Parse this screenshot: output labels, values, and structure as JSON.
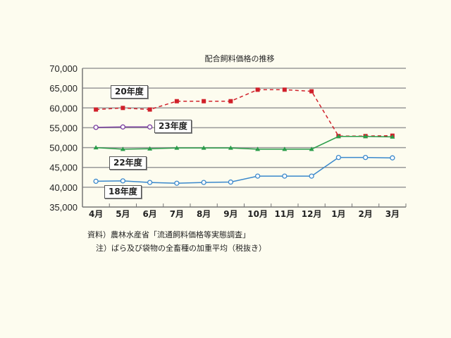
{
  "chart_data": {
    "type": "line",
    "title": "配合飼料価格の推移",
    "xlabel": "",
    "ylabel": "",
    "categories": [
      "4月",
      "5月",
      "6月",
      "7月",
      "8月",
      "9月",
      "10月",
      "11月",
      "12月",
      "1月",
      "2月",
      "3月"
    ],
    "ylim": [
      35000,
      70000
    ],
    "yticks": [
      "70,000",
      "65,000",
      "60,000",
      "55,000",
      "50,000",
      "45,000",
      "40,000",
      "35,000"
    ],
    "grid": true,
    "series": [
      {
        "name": "20年度",
        "color": "#d0202a",
        "style": "dashed",
        "marker": "square",
        "values": [
          59600,
          60000,
          59600,
          61700,
          61700,
          61700,
          64600,
          64600,
          64200,
          52900,
          52900,
          53000
        ]
      },
      {
        "name": "23年度",
        "color": "#7a3fa0",
        "style": "solid",
        "marker": "open-circle",
        "values": [
          55100,
          55200,
          55200,
          null,
          null,
          null,
          null,
          null,
          null,
          null,
          null,
          null
        ]
      },
      {
        "name": "22年度",
        "color": "#2a9d4a",
        "style": "solid",
        "marker": "triangle",
        "values": [
          50000,
          49600,
          49700,
          49900,
          49900,
          49900,
          49600,
          49600,
          49600,
          52800,
          52800,
          52700
        ]
      },
      {
        "name": "18年度",
        "color": "#3a88cc",
        "style": "solid",
        "marker": "open-circle",
        "values": [
          41500,
          41600,
          41200,
          41000,
          41200,
          41300,
          42800,
          42800,
          42800,
          47500,
          47500,
          47400
        ]
      }
    ],
    "annotations": [
      "20年度",
      "23年度",
      "22年度",
      "18年度"
    ]
  },
  "labels": {
    "s20": "20年度",
    "s23": "23年度",
    "s22": "22年度",
    "s18": "18年度"
  },
  "notes": {
    "source": "資料）農林水産省「流通飼料価格等実態調査」",
    "note": "注）ばら及び袋物の全畜種の加重平均（税抜き）"
  }
}
